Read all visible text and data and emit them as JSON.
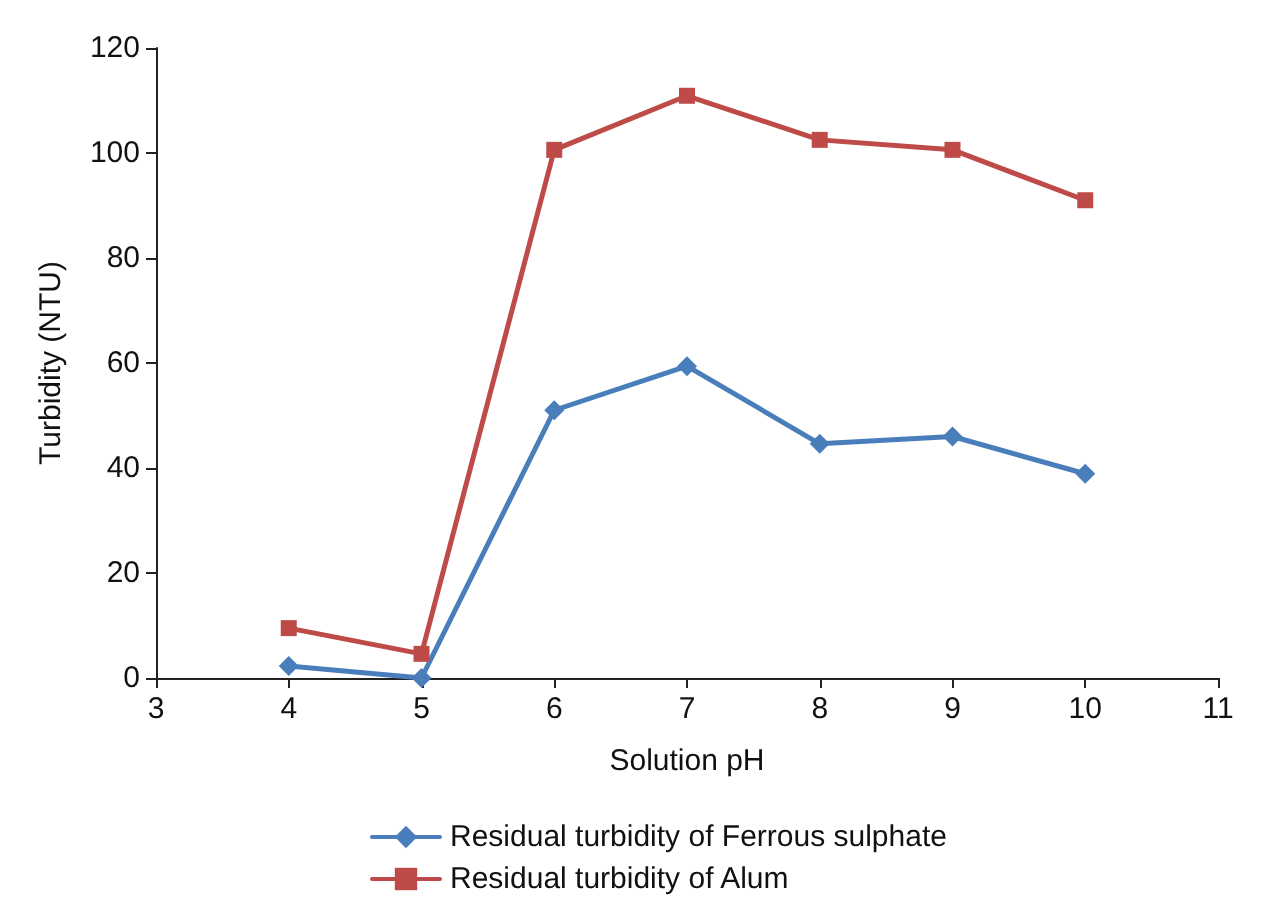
{
  "chart_data": {
    "type": "line",
    "xlabel": "Solution pH",
    "ylabel": "Turbidity (NTU)",
    "x": [
      4,
      5,
      6,
      7,
      8,
      9,
      10
    ],
    "series": [
      {
        "name": "Residual turbidity of Ferrous sulphate",
        "color": "#4a7ebb",
        "marker": "diamond",
        "values": [
          2.3,
          0,
          51,
          59.4,
          44.6,
          46,
          38.9
        ]
      },
      {
        "name": "Residual turbidity of Alum",
        "color": "#be4b48",
        "marker": "square",
        "values": [
          9.5,
          4.6,
          100.6,
          110.9,
          102.5,
          100.6,
          91
        ]
      }
    ],
    "xlim": [
      3,
      11
    ],
    "xticks": [
      3,
      4,
      5,
      6,
      7,
      8,
      9,
      10,
      11
    ],
    "ylim": [
      0,
      120
    ],
    "yticks": [
      0,
      20,
      40,
      60,
      80,
      100,
      120
    ],
    "grid": false,
    "legend": "bottom",
    "line_style": "solid"
  }
}
